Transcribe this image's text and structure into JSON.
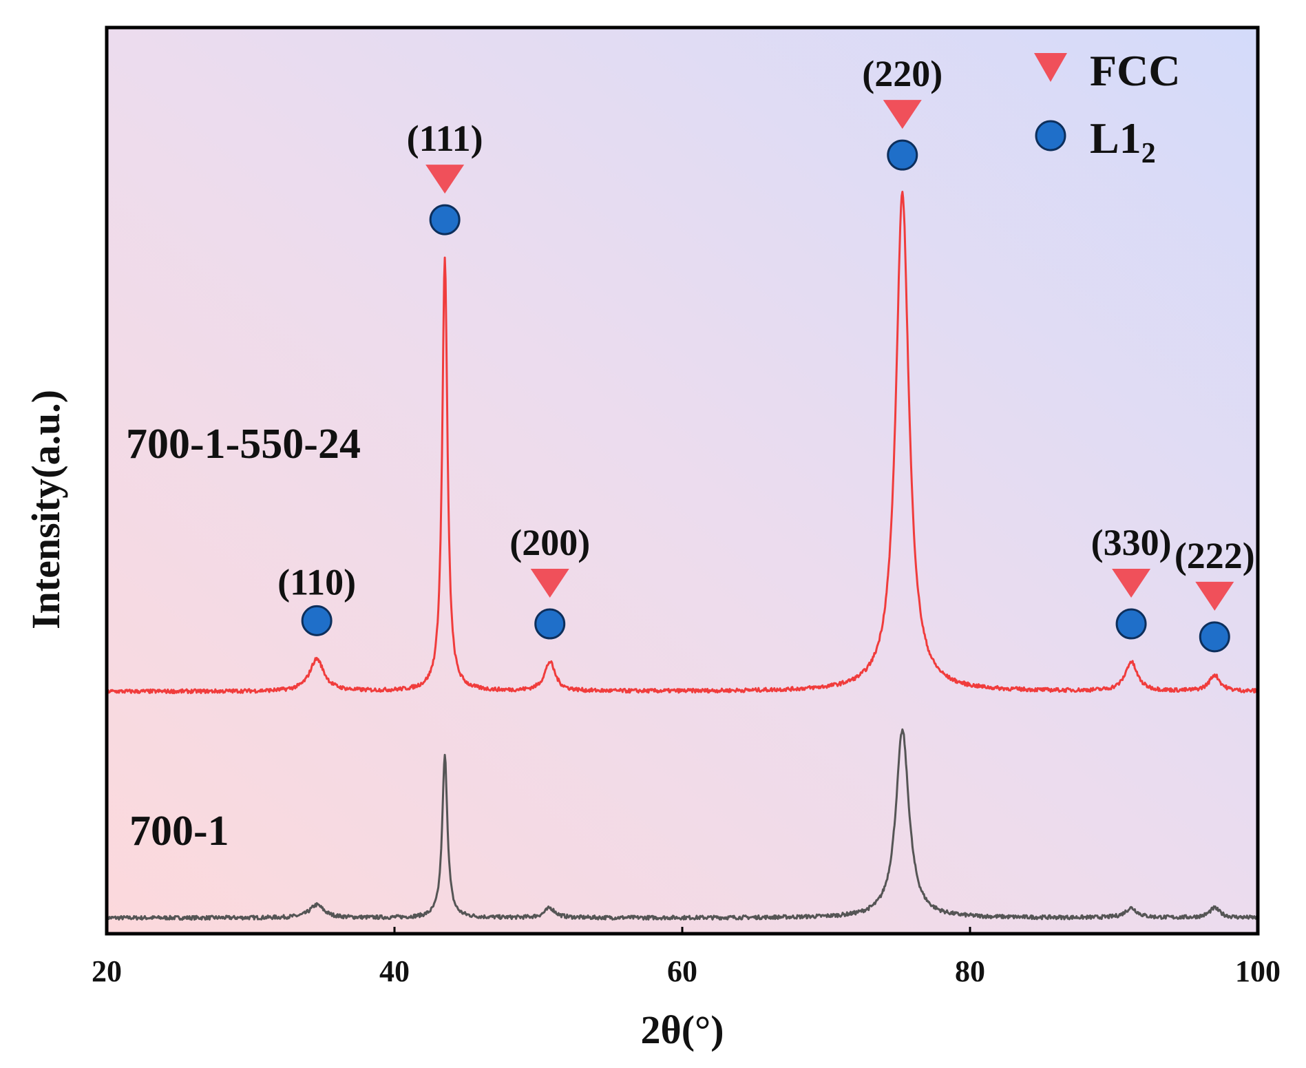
{
  "chart_data": {
    "type": "line",
    "title": "",
    "xlabel": "2θ(°)",
    "ylabel": "Intensity(a.u.)",
    "xlim": [
      20,
      100
    ],
    "xticks": [
      "20",
      "40",
      "60",
      "80",
      "100"
    ],
    "grid": false,
    "background": "gradient pink (bottom-left) to lavender-blue (top-right)",
    "series": [
      {
        "name": "700-1",
        "color": "#555555",
        "baseline": 0,
        "peaks": [
          {
            "x": 34.6,
            "height": 0.02,
            "width": 0.6
          },
          {
            "x": 43.5,
            "height": 0.25,
            "width": 0.22
          },
          {
            "x": 50.8,
            "height": 0.015,
            "width": 0.45
          },
          {
            "x": 75.3,
            "height": 0.29,
            "width": 0.55
          },
          {
            "x": 91.2,
            "height": 0.015,
            "width": 0.5
          },
          {
            "x": 97.0,
            "height": 0.015,
            "width": 0.45
          }
        ]
      },
      {
        "name": "700-1-550-24",
        "color": "#f03c3c",
        "baseline": 0.35,
        "peaks": [
          {
            "x": 34.6,
            "height": 0.05,
            "width": 0.6
          },
          {
            "x": 43.5,
            "height": 0.67,
            "width": 0.22
          },
          {
            "x": 50.8,
            "height": 0.045,
            "width": 0.45
          },
          {
            "x": 75.3,
            "height": 0.77,
            "width": 0.55
          },
          {
            "x": 91.2,
            "height": 0.045,
            "width": 0.5
          },
          {
            "x": 97.0,
            "height": 0.025,
            "width": 0.45
          }
        ]
      }
    ],
    "series_labels": [
      "700-1-550-24",
      "700-1"
    ],
    "annotations": [
      {
        "label": "(110)",
        "x": 34.6,
        "markers": [
          "L12"
        ]
      },
      {
        "label": "(111)",
        "x": 43.5,
        "markers": [
          "FCC",
          "L12"
        ]
      },
      {
        "label": "(200)",
        "x": 50.8,
        "markers": [
          "FCC",
          "L12"
        ]
      },
      {
        "label": "(220)",
        "x": 75.3,
        "markers": [
          "FCC",
          "L12"
        ]
      },
      {
        "label": "(330)",
        "x": 91.2,
        "markers": [
          "FCC",
          "L12"
        ]
      },
      {
        "label": "(222)",
        "x": 97.0,
        "markers": [
          "FCC",
          "L12"
        ]
      }
    ],
    "legend": {
      "position": "top-right",
      "entries": [
        {
          "label": "FCC",
          "marker": "down-triangle",
          "color": "#f0505a"
        },
        {
          "label": "L1",
          "subscript": "2",
          "marker": "circle",
          "color": "#1f6fc9"
        }
      ]
    }
  }
}
